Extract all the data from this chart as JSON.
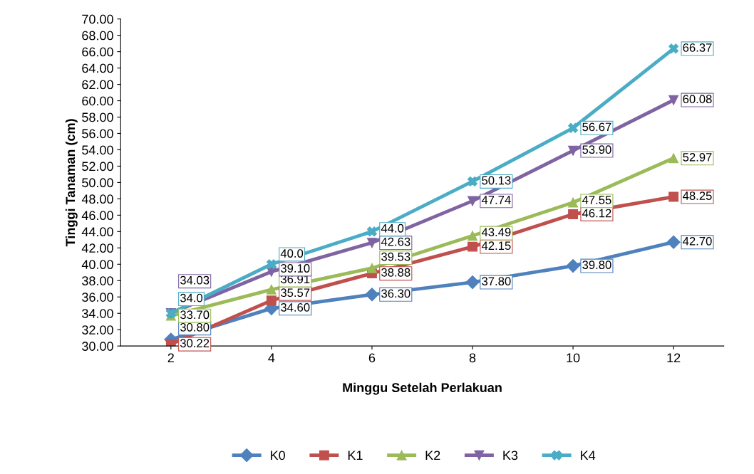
{
  "chart_data": {
    "type": "line",
    "xlabel": "Minggu Setelah Perlakuan",
    "ylabel": "Tinggi Tanaman (cm)",
    "categories": [
      "2",
      "4",
      "6",
      "8",
      "10",
      "12"
    ],
    "series": [
      {
        "name": "K0",
        "color": "#4f81bd",
        "marker": "diamond",
        "values": [
          30.8,
          34.6,
          36.3,
          37.8,
          39.8,
          42.7
        ],
        "value_labels": [
          "30.80",
          "34.60",
          "36.30",
          "37.80",
          "39.80",
          "42.70"
        ]
      },
      {
        "name": "K1",
        "color": "#c0504d",
        "marker": "square",
        "values": [
          30.22,
          35.57,
          38.88,
          42.15,
          46.12,
          48.25
        ],
        "value_labels": [
          "30.22",
          "35.57",
          "38.88",
          "42.15",
          "46.12",
          "48.25"
        ]
      },
      {
        "name": "K2",
        "color": "#9bbb59",
        "marker": "triangle",
        "values": [
          33.7,
          36.91,
          39.53,
          43.49,
          47.55,
          52.97
        ],
        "value_labels": [
          "33.70",
          "36.91",
          "39.53",
          "43.49",
          "47.55",
          "52.97"
        ]
      },
      {
        "name": "K3",
        "color": "#8064a2",
        "marker": "triangle_down",
        "values": [
          34.03,
          39.1,
          42.63,
          47.74,
          53.9,
          60.08
        ],
        "value_labels": [
          "34.03",
          "39.10",
          "42.63",
          "47.74",
          "53.90",
          "60.08"
        ]
      },
      {
        "name": "K4",
        "color": "#4bacc6",
        "marker": "cross",
        "values": [
          34.0,
          40.0,
          44.0,
          50.13,
          56.67,
          66.37
        ],
        "value_labels": [
          "34.0",
          "40.0",
          "44.0",
          "50.13",
          "56.67",
          "66.37"
        ]
      }
    ],
    "ylim": [
      30,
      70
    ],
    "yticks": [
      {
        "value": 30,
        "label": "30.00"
      },
      {
        "value": 32,
        "label": "32.00"
      },
      {
        "value": 34,
        "label": "34.00"
      },
      {
        "value": 36,
        "label": "36.00"
      },
      {
        "value": 38,
        "label": "38.00"
      },
      {
        "value": 40,
        "label": "40.00"
      },
      {
        "value": 42,
        "label": "42.00"
      },
      {
        "value": 44,
        "label": "44.00"
      },
      {
        "value": 46,
        "label": "46.00"
      },
      {
        "value": 48,
        "label": "48.00"
      },
      {
        "value": 50,
        "label": "50.00"
      },
      {
        "value": 52,
        "label": "52.00"
      },
      {
        "value": 54,
        "label": "54.00"
      },
      {
        "value": 56,
        "label": "56.00"
      },
      {
        "value": 58,
        "label": "58.00"
      },
      {
        "value": 60,
        "label": "60.00"
      },
      {
        "value": 62,
        "label": "62.00"
      },
      {
        "value": 64,
        "label": "64.00"
      },
      {
        "value": 66,
        "label": "66.00"
      },
      {
        "value": 68,
        "label": "68.00"
      },
      {
        "value": 70,
        "label": "70.00"
      }
    ],
    "grid": false,
    "legend": "bottom",
    "line_style": "solid"
  }
}
